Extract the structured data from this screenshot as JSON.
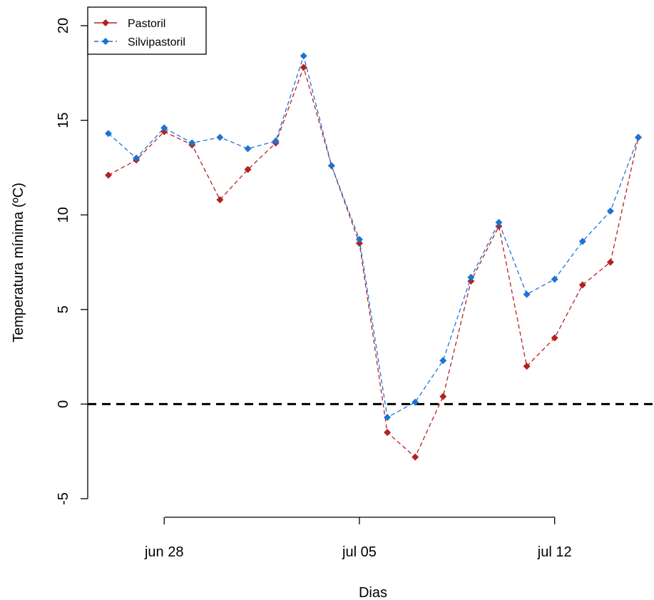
{
  "chart_data": {
    "type": "line",
    "xlabel": "Dias",
    "ylabel": "Temperatura mínima (ºC)",
    "ylim": [
      -5,
      20
    ],
    "yticks": [
      -5,
      0,
      5,
      10,
      15,
      20
    ],
    "xlim": [
      "2024-06-25",
      "2024-07-16"
    ],
    "xticks": [
      {
        "date": "2024-06-28",
        "label": "jun 28"
      },
      {
        "date": "2024-07-05",
        "label": "jul 05"
      },
      {
        "date": "2024-07-12",
        "label": "jul 12"
      }
    ],
    "x": [
      "2024-06-26",
      "2024-06-27",
      "2024-06-28",
      "2024-06-29",
      "2024-06-30",
      "2024-07-01",
      "2024-07-02",
      "2024-07-03",
      "2024-07-04",
      "2024-07-05",
      "2024-07-06",
      "2024-07-07",
      "2024-07-08",
      "2024-07-09",
      "2024-07-10",
      "2024-07-11",
      "2024-07-12",
      "2024-07-13",
      "2024-07-14",
      "2024-07-15"
    ],
    "series": [
      {
        "name": "Pastoril",
        "color": "#b22222",
        "values": [
          12.1,
          12.9,
          14.4,
          13.7,
          10.8,
          12.4,
          13.8,
          17.8,
          12.6,
          8.5,
          -1.5,
          -2.8,
          0.4,
          6.5,
          9.4,
          2.0,
          3.5,
          6.3,
          7.5,
          14.1
        ]
      },
      {
        "name": "Silvipastoril",
        "color": "#1e73d2",
        "values": [
          14.3,
          13.0,
          14.6,
          13.8,
          14.1,
          13.5,
          13.9,
          18.4,
          12.6,
          8.7,
          -0.7,
          0.1,
          2.3,
          6.7,
          9.6,
          5.8,
          6.6,
          8.6,
          10.2,
          14.1
        ]
      }
    ],
    "reference_line": {
      "y": 0,
      "style": "dashed",
      "color": "#000000"
    },
    "legend": {
      "placement": "top-left"
    }
  }
}
